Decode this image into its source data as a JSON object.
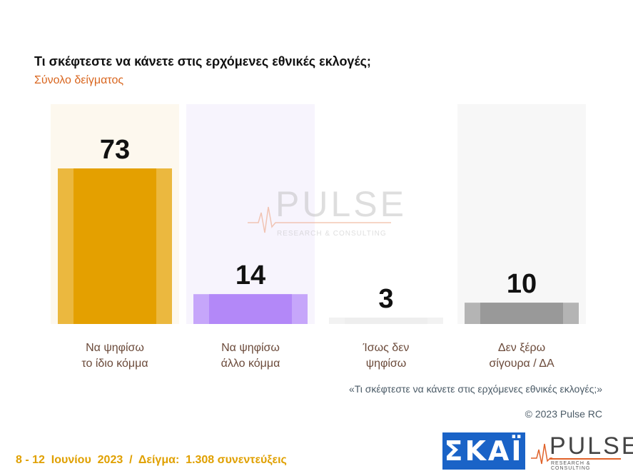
{
  "title": "Τι σκέφτεστε να κάνετε στις ερχόμενες εθνικές εκλογές;",
  "subtitle": "Σύνολο δείγματος",
  "question_note": "«Τι σκέφτεστε να κάνετε στις ερχόμενες εθνικές εκλογές;»",
  "copyright": "© 2023 Pulse RC",
  "footer": "8 - 12  Ιουνίου  2023  /  Δείγμα:  1.308 συνεντεύξεις",
  "logos": {
    "skai": "ΣΚΑΪ",
    "pulse": "PULSE",
    "pulse_sub": "RESEARCH & CONSULTING"
  },
  "watermark": {
    "word": "PULSE",
    "sub": "RESEARCH & CONSULTING"
  },
  "colors": {
    "title": "#111111",
    "subtitle": "#d9661f",
    "footer": "#e0a000"
  },
  "chart_data": {
    "type": "bar",
    "ylim": [
      0,
      80
    ],
    "categories": [
      [
        "Να ψηφίσω",
        "το ίδιο κόμμα"
      ],
      [
        "Να ψηφίσω",
        "άλλο κόμμα"
      ],
      [
        "Ίσως δεν",
        "ψηφίσω"
      ],
      [
        "Δεν ξέρω",
        "σίγουρα / ΔΑ"
      ]
    ],
    "values": [
      73,
      14,
      3,
      10
    ],
    "bar_colors": [
      "#e4a000",
      "#b388f8",
      "#eeeeee",
      "#999999"
    ],
    "bar_side_colors": [
      "#ebb83f",
      "#c6a6fa",
      "#f2f2f2",
      "#b4b4b4"
    ],
    "panel_colors": [
      "#fdf8ee",
      "#f7f4fd",
      "#ffffff",
      "#f7f7f7"
    ]
  }
}
